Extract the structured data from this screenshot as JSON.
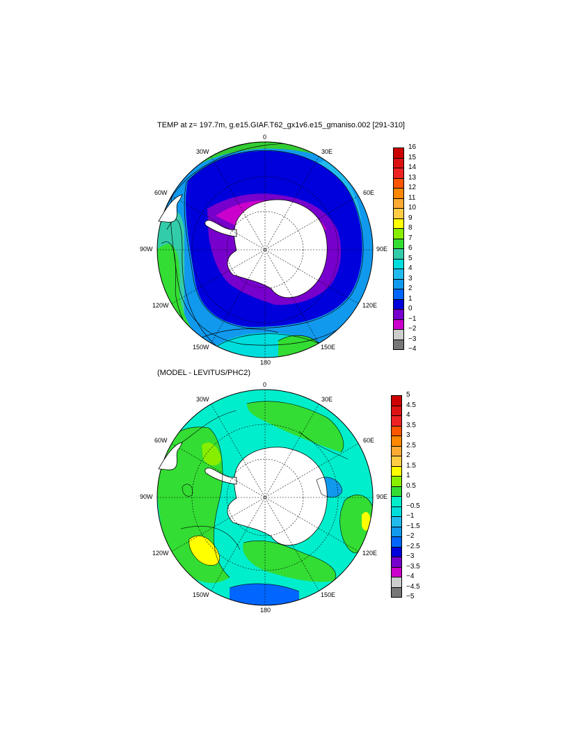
{
  "panel1": {
    "title": "TEMP at z= 197.7m, g.e15.GIAF.T62_gx1v6.e15_gmaniso.002 [291-310]",
    "lon_labels": [
      "0",
      "30E",
      "60E",
      "90E",
      "120E",
      "150E",
      "180",
      "150W",
      "120W",
      "90W",
      "60W",
      "30W"
    ],
    "colorbar": {
      "levels": [
        "16",
        "15",
        "14",
        "13",
        "12",
        "11",
        "10",
        "9",
        "8",
        "7",
        "6",
        "5",
        "4",
        "3",
        "2",
        "1",
        "0",
        "−1",
        "−2",
        "−3",
        "−4"
      ],
      "colors": [
        "#cc0000",
        "#dd1111",
        "#ee2222",
        "#ff5500",
        "#ff8800",
        "#ffaa33",
        "#ffcc44",
        "#ffff00",
        "#88ee00",
        "#33dd33",
        "#33ccaa",
        "#00dddd",
        "#22bbee",
        "#1199ee",
        "#0066ff",
        "#0000dd",
        "#7700cc",
        "#cc00cc",
        "#cccccc",
        "#777777"
      ]
    }
  },
  "panel2": {
    "title": "(MODEL - LEVITUS/PHC2)",
    "lon_labels": [
      "0",
      "30E",
      "60E",
      "90E",
      "120E",
      "150E",
      "180",
      "150W",
      "120W",
      "90W",
      "60W",
      "30W"
    ],
    "colorbar": {
      "levels": [
        "5",
        "4.5",
        "4",
        "3.5",
        "3",
        "2.5",
        "2",
        "1.5",
        "1",
        "0.5",
        "0",
        "−0.5",
        "−1",
        "−1.5",
        "−2",
        "−2.5",
        "−3",
        "−3.5",
        "−4",
        "−4.5",
        "−5"
      ],
      "colors": [
        "#cc0000",
        "#dd1111",
        "#ee2222",
        "#ff5500",
        "#ff8800",
        "#ffaa33",
        "#ffcc44",
        "#ffff00",
        "#88ee00",
        "#33dd33",
        "#00eecc",
        "#00dddd",
        "#22bbee",
        "#1199ee",
        "#0066ff",
        "#0000dd",
        "#7700cc",
        "#cc00cc",
        "#cccccc",
        "#777777"
      ]
    }
  }
}
